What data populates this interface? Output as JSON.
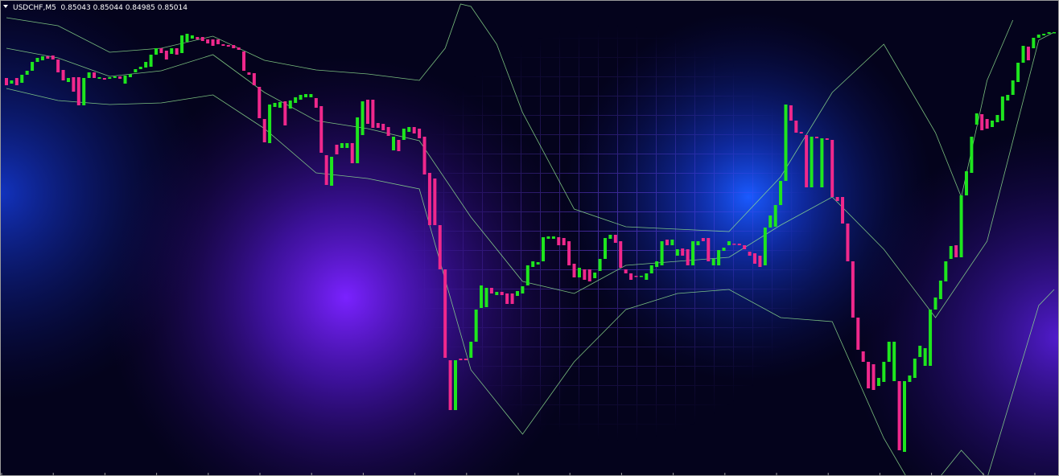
{
  "chart_data": {
    "type": "candlestick",
    "title": "USDCHF,M5  0.85043 0.85044 0.84985 0.85014",
    "ylim": [
      0.84808,
      0.854
    ],
    "up_color": "#1ee61e",
    "down_color": "#f0288c",
    "candles": {
      "open": [
        0.85303,
        0.85296,
        0.85303,
        0.85297,
        0.85307,
        0.85312,
        0.85323,
        0.85325,
        0.8533,
        0.85331,
        0.85326,
        0.85313,
        0.85298,
        0.85304,
        0.85304,
        0.85269,
        0.85303,
        0.8531,
        0.85302,
        0.85303,
        0.85302,
        0.85303,
        0.85305,
        0.85296,
        0.85304,
        0.8531,
        0.85314,
        0.85316,
        0.85317,
        0.85332,
        0.8534,
        0.85337,
        0.85333,
        0.8534,
        0.85334,
        0.85348,
        0.85352,
        0.85354,
        0.85354,
        0.85351,
        0.85351,
        0.85351,
        0.85345,
        0.85344,
        0.85344,
        0.85341,
        0.85336,
        0.8531,
        0.85309,
        0.85292,
        0.85252,
        0.85222,
        0.85267,
        0.85266,
        0.85274,
        0.85265,
        0.85272,
        0.85276,
        0.85279,
        0.85279,
        0.85278,
        0.85268,
        0.85207,
        0.85169,
        0.8522,
        0.85216,
        0.85216,
        0.85222,
        0.85197,
        0.85232,
        0.85276,
        0.85276,
        0.85247,
        0.85246,
        0.85242,
        0.85213,
        0.85226,
        0.85226,
        0.85236,
        0.85242,
        0.8524,
        0.8523,
        0.85185,
        0.85178,
        0.8512,
        0.85065,
        0.84952,
        0.8489,
        0.84954,
        0.84954,
        0.84955,
        0.84975,
        0.85017,
        0.85018,
        0.85042,
        0.85033,
        0.85037,
        0.85035,
        0.85035,
        0.85032,
        0.85035,
        0.85045,
        0.85068,
        0.85071,
        0.85075,
        0.85103,
        0.85103,
        0.85105,
        0.85104,
        0.851,
        0.85072,
        0.85055,
        0.85065,
        0.85065,
        0.85054,
        0.85063,
        0.85078,
        0.85103,
        0.85108,
        0.851,
        0.85065,
        0.8506,
        0.85057,
        0.85056,
        0.85052,
        0.8506,
        0.85068,
        0.8507,
        0.85102,
        0.85095,
        0.85082,
        0.85091,
        0.8509,
        0.8507,
        0.85095,
        0.85104,
        0.85104,
        0.8507,
        0.8507,
        0.85088,
        0.85095,
        0.85097,
        0.85097,
        0.85095,
        0.85087,
        0.85085,
        0.85082,
        0.8507,
        0.85117,
        0.85118,
        0.85145,
        0.85175,
        0.85269,
        0.8525,
        0.85236,
        0.85232,
        0.85167,
        0.8523,
        0.85167,
        0.85228,
        0.85226,
        0.85155,
        0.85155,
        0.85122,
        0.85075,
        0.85005,
        0.84963,
        0.8495,
        0.84947,
        0.8492,
        0.84925,
        0.8495,
        0.84926,
        0.84926,
        0.84838,
        0.84925,
        0.8493,
        0.84956,
        0.84945,
        0.84945,
        0.85015,
        0.85028,
        0.8505,
        0.85078,
        0.85095,
        0.8508,
        0.85157,
        0.85185,
        0.85245,
        0.85258,
        0.85252,
        0.85242,
        0.85248,
        0.8525,
        0.85275,
        0.85282,
        0.85298,
        0.85322,
        0.85342,
        0.8534,
        0.85353,
        0.85356,
        0.85358,
        0.85359
      ],
      "close": [
        0.85294,
        0.853,
        0.85294,
        0.85307,
        0.85312,
        0.85323,
        0.85328,
        0.8533,
        0.85327,
        0.85326,
        0.8531,
        0.853,
        0.85303,
        0.85286,
        0.85269,
        0.85303,
        0.8531,
        0.85303,
        0.85304,
        0.85301,
        0.85304,
        0.85305,
        0.85302,
        0.85306,
        0.85308,
        0.85314,
        0.85317,
        0.85323,
        0.85332,
        0.8534,
        0.85334,
        0.85326,
        0.8534,
        0.85332,
        0.85356,
        0.85358,
        0.85356,
        0.85351,
        0.85349,
        0.85346,
        0.85343,
        0.85345,
        0.85343,
        0.85342,
        0.8534,
        0.85338,
        0.85312,
        0.85307,
        0.85294,
        0.85253,
        0.85223,
        0.8527,
        0.85272,
        0.85273,
        0.85244,
        0.85275,
        0.85279,
        0.85282,
        0.85283,
        0.85283,
        0.85266,
        0.8521,
        0.8517,
        0.85205,
        0.85208,
        0.85222,
        0.85222,
        0.85197,
        0.85254,
        0.85274,
        0.85246,
        0.85241,
        0.85241,
        0.85238,
        0.85231,
        0.8523,
        0.85212,
        0.8524,
        0.85242,
        0.85234,
        0.85228,
        0.85183,
        0.8512,
        0.8512,
        0.85065,
        0.84955,
        0.8489,
        0.84952,
        0.84952,
        0.84952,
        0.84975,
        0.85015,
        0.85045,
        0.85042,
        0.85035,
        0.85037,
        0.85033,
        0.85022,
        0.85022,
        0.85038,
        0.85044,
        0.8507,
        0.85075,
        0.85074,
        0.85105,
        0.85106,
        0.85106,
        0.85095,
        0.85095,
        0.8507,
        0.85055,
        0.85067,
        0.85052,
        0.8505,
        0.85061,
        0.85078,
        0.85104,
        0.85108,
        0.85098,
        0.85067,
        0.8506,
        0.85052,
        0.85056,
        0.85057,
        0.8506,
        0.8507,
        0.85075,
        0.851,
        0.85095,
        0.85102,
        0.8509,
        0.85082,
        0.8507,
        0.851,
        0.851,
        0.851,
        0.85075,
        0.85078,
        0.85089,
        0.85092,
        0.851,
        0.85096,
        0.85095,
        0.8509,
        0.85082,
        0.85072,
        0.85068,
        0.85117,
        0.85132,
        0.85145,
        0.85175,
        0.8527,
        0.8525,
        0.85235,
        0.85234,
        0.85167,
        0.8523,
        0.85228,
        0.85228,
        0.85226,
        0.85155,
        0.8515,
        0.85122,
        0.85075,
        0.85005,
        0.84965,
        0.8495,
        0.84917,
        0.84915,
        0.8493,
        0.8495,
        0.84975,
        0.84975,
        0.8484,
        0.84926,
        0.84933,
        0.84954,
        0.8497,
        0.84967,
        0.85015,
        0.8503,
        0.85051,
        0.85075,
        0.85094,
        0.8508,
        0.85157,
        0.85187,
        0.8523,
        0.85259,
        0.85238,
        0.8524,
        0.8525,
        0.85257,
        0.8528,
        0.85282,
        0.853,
        0.85322,
        0.85343,
        0.85325,
        0.85353,
        0.85357,
        0.85358,
        0.8536,
        0.8536
      ]
    },
    "bands": [
      {
        "color": "#8fe08f",
        "x": [
          0,
          10,
          20,
          30,
          40,
          50,
          60,
          70,
          80,
          85,
          88,
          90,
          95,
          100,
          110,
          120,
          130,
          140,
          150,
          160,
          170,
          180,
          185,
          190,
          195
        ],
        "values": [
          0.85378,
          0.85368,
          0.85335,
          0.8534,
          0.85355,
          0.85325,
          0.85313,
          0.85308,
          0.853,
          0.8534,
          0.85395,
          0.85392,
          0.85345,
          0.8526,
          0.8514,
          0.85118,
          0.85115,
          0.85112,
          0.8518,
          0.85285,
          0.85345,
          0.85235,
          0.85155,
          0.853,
          0.85375
        ]
      },
      {
        "color": "#8fe08f",
        "x": [
          0,
          10,
          20,
          30,
          40,
          50,
          60,
          70,
          80,
          90,
          100,
          110,
          120,
          130,
          140,
          150,
          160,
          170,
          180,
          190,
          200,
          203
        ],
        "values": [
          0.8534,
          0.85328,
          0.85305,
          0.85312,
          0.85332,
          0.85285,
          0.8525,
          0.8524,
          0.85225,
          0.8513,
          0.8505,
          0.85035,
          0.8507,
          0.85075,
          0.8508,
          0.8512,
          0.85155,
          0.8509,
          0.85005,
          0.851,
          0.8535,
          0.8536
        ]
      },
      {
        "color": "#8fe08f",
        "x": [
          0,
          10,
          20,
          30,
          40,
          50,
          60,
          70,
          80,
          90,
          100,
          110,
          120,
          130,
          140,
          150,
          160,
          170,
          175,
          180,
          185,
          190,
          200,
          203
        ],
        "values": [
          0.8529,
          0.85275,
          0.8527,
          0.85272,
          0.85282,
          0.8524,
          0.85185,
          0.85178,
          0.85165,
          0.8494,
          0.8486,
          0.8495,
          0.85015,
          0.85035,
          0.8504,
          0.85005,
          0.85,
          0.84855,
          0.848,
          0.848,
          0.8484,
          0.84805,
          0.8502,
          0.8504
        ]
      }
    ]
  }
}
